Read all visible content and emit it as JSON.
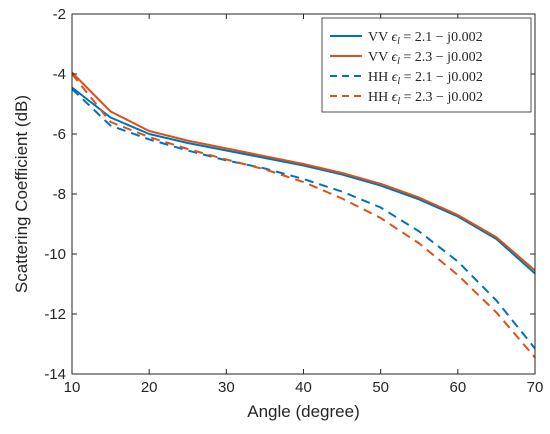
{
  "chart_data": {
    "type": "line",
    "xlabel": "Angle (degree)",
    "ylabel": "Scattering Coefficient (dB)",
    "xlim": [
      10,
      70
    ],
    "ylim": [
      -14,
      -2
    ],
    "xticks": [
      10,
      20,
      30,
      40,
      50,
      60,
      70
    ],
    "yticks": [
      -14,
      -12,
      -10,
      -8,
      -6,
      -4,
      -2
    ],
    "xtick_labels": [
      "10",
      "20",
      "30",
      "40",
      "50",
      "60",
      "70"
    ],
    "ytick_labels": [
      "-14",
      "-12",
      "-10",
      "-8",
      "-6",
      "-4",
      "-2"
    ],
    "grid": false,
    "legend_placement": "top-right",
    "x": [
      10,
      15,
      20,
      25,
      30,
      35,
      40,
      45,
      50,
      55,
      60,
      65,
      70
    ],
    "series": [
      {
        "name": "VV ϵl = 2.1 − j0.002",
        "color": "#0072BD",
        "style": "solid",
        "values": [
          -4.45,
          -5.45,
          -6.0,
          -6.3,
          -6.55,
          -6.8,
          -7.05,
          -7.35,
          -7.72,
          -8.18,
          -8.75,
          -9.5,
          -10.65
        ]
      },
      {
        "name": "VV ϵl = 2.3 − j0.002",
        "color": "#D95319",
        "style": "solid",
        "values": [
          -3.95,
          -5.25,
          -5.9,
          -6.22,
          -6.48,
          -6.74,
          -7.0,
          -7.3,
          -7.66,
          -8.12,
          -8.7,
          -9.44,
          -10.55
        ]
      },
      {
        "name": "HH ϵl = 2.1 − j0.002",
        "color": "#0072BD",
        "style": "dashed",
        "values": [
          -4.5,
          -5.72,
          -6.18,
          -6.55,
          -6.88,
          -7.15,
          -7.5,
          -7.92,
          -8.45,
          -9.25,
          -10.25,
          -11.55,
          -13.15
        ]
      },
      {
        "name": "HH ϵl = 2.3 − j0.002",
        "color": "#D95319",
        "style": "dashed",
        "values": [
          -4.0,
          -5.6,
          -6.1,
          -6.5,
          -6.85,
          -7.18,
          -7.6,
          -8.15,
          -8.8,
          -9.65,
          -10.7,
          -11.95,
          -13.45
        ]
      }
    ],
    "legend": [
      {
        "prefix": "VV",
        "symbol": "ϵ",
        "sub": "l",
        "expr": "= 2.1 − j0.002"
      },
      {
        "prefix": "VV",
        "symbol": "ϵ",
        "sub": "l",
        "expr": "= 2.3 − j0.002"
      },
      {
        "prefix": "HH",
        "symbol": "ϵ",
        "sub": "l",
        "expr": "= 2.1 − j0.002"
      },
      {
        "prefix": "HH",
        "symbol": "ϵ",
        "sub": "l",
        "expr": "= 2.3 − j0.002"
      }
    ]
  }
}
